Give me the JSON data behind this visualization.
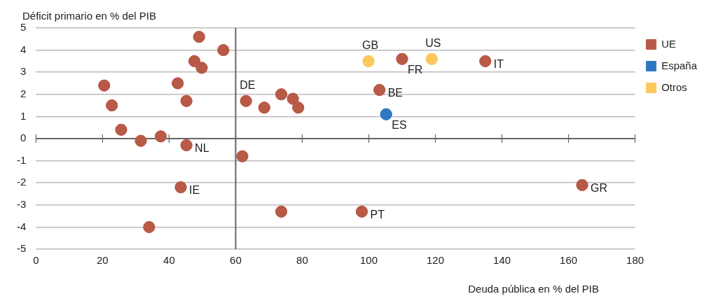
{
  "chart_data": {
    "type": "scatter",
    "xlabel": "Deuda pública en % del PIB",
    "ylabel": "Déficit primario en % del PIB",
    "xlim": [
      0,
      180
    ],
    "xticks": [
      0,
      20,
      40,
      60,
      80,
      100,
      120,
      140,
      160,
      180
    ],
    "ylim": [
      -5,
      5
    ],
    "yticks": [
      -5,
      -4,
      -3,
      -2,
      -1,
      0,
      1,
      2,
      3,
      4,
      5
    ],
    "grid": "y",
    "legend": "top right",
    "marker": "circle",
    "ref_lines": [
      {
        "axis": "x",
        "value": 60,
        "color": "#666666"
      }
    ],
    "series": [
      {
        "name": "UE",
        "color": "#b85a48",
        "x": [
          20.5,
          22.8,
          25.6,
          31.5,
          37.5,
          45.2,
          42.6,
          45.2,
          49,
          47.6,
          49.8,
          56.3,
          43.5,
          34,
          62,
          63.1,
          68.6,
          73.7,
          77.2,
          78.8,
          73.7,
          97.9,
          103.2,
          110,
          135,
          164.1
        ],
        "values": [
          2.4,
          1.5,
          0.4,
          -0.1,
          0.1,
          -0.3,
          2.5,
          1.7,
          4.6,
          3.5,
          3.2,
          4.0,
          -2.2,
          -4.0,
          -0.8,
          1.7,
          1.4,
          2.0,
          1.8,
          1.4,
          -3.3,
          -3.3,
          2.2,
          3.6,
          3.5,
          -2.1
        ]
      },
      {
        "name": "España",
        "color": "#2f77c2",
        "x": [
          105.2
        ],
        "values": [
          1.1
        ]
      },
      {
        "name": "Otros",
        "color": "#fcc85e",
        "x": [
          99.9,
          118.9
        ],
        "values": [
          3.5,
          3.6
        ]
      }
    ],
    "annotations": [
      {
        "text": "NL",
        "x": 45.2,
        "y": -0.3
      },
      {
        "text": "IE",
        "x": 43.5,
        "y": -2.2
      },
      {
        "text": "DE",
        "x": 63.1,
        "y": 1.7
      },
      {
        "text": "PT",
        "x": 97.9,
        "y": -3.3
      },
      {
        "text": "BE",
        "x": 103.2,
        "y": 2.2
      },
      {
        "text": "FR",
        "x": 110,
        "y": 3.6
      },
      {
        "text": "IT",
        "x": 135,
        "y": 3.5
      },
      {
        "text": "GR",
        "x": 164.1,
        "y": -2.1
      },
      {
        "text": "ES",
        "x": 105.2,
        "y": 1.1
      },
      {
        "text": "GB",
        "x": 99.9,
        "y": 3.5
      },
      {
        "text": "US",
        "x": 118.9,
        "y": 3.6
      }
    ]
  }
}
